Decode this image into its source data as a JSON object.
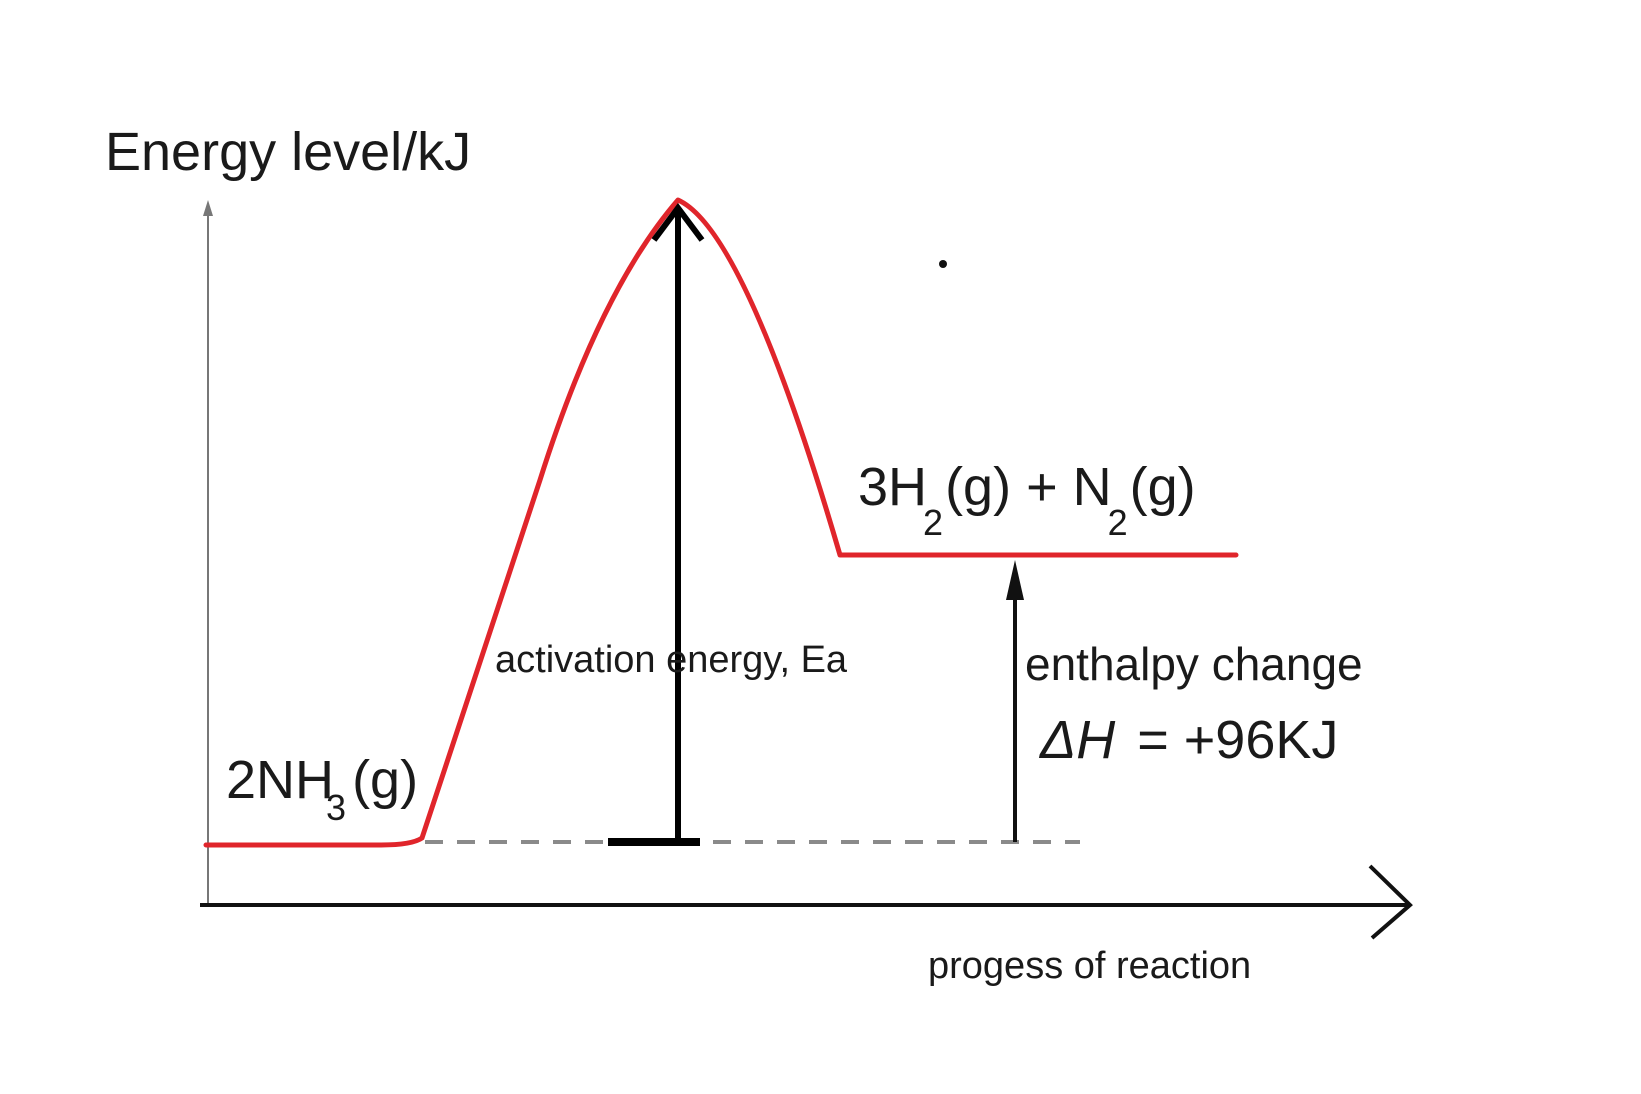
{
  "diagram": {
    "y_axis_label": "Energy level/kJ",
    "x_axis_label": "progess of reaction",
    "reactant": {
      "coef_text": "2NH",
      "subscript": "3",
      "state": "(g)"
    },
    "product": {
      "h2_text": "3H",
      "h2_sub": "2",
      "h2_state": "(g) + N",
      "n2_sub": "2",
      "n2_state": "(g)"
    },
    "activation_label": "activation energy, Ea",
    "enthalpy_label": "enthalpy change",
    "delta_h_symbol": "ΔH",
    "delta_h_value": "= +96KJ",
    "colors": {
      "curve": "#e0252b",
      "axis": "#111111",
      "dashed": "#8a8a8a"
    }
  }
}
